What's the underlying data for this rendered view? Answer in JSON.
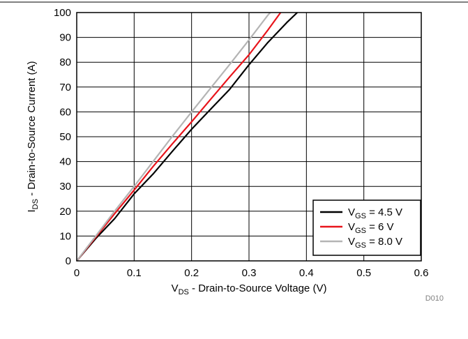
{
  "figure_code": "D010",
  "chart_data": {
    "type": "line",
    "title": "",
    "xlabel": {
      "main": "V",
      "sub": "DS",
      "rest": " - Drain-to-Source Voltage (V)"
    },
    "ylabel": {
      "main": "I",
      "sub": "DS",
      "rest": " - Drain-to-Source Current (A)"
    },
    "xlim": [
      0,
      0.6
    ],
    "ylim": [
      0,
      100
    ],
    "x_ticks": [
      0,
      0.1,
      0.2,
      0.3,
      0.4,
      0.5,
      0.6
    ],
    "x_tick_labels": [
      "0",
      "0.1",
      "0.2",
      "0.3",
      "0.4",
      "0.5",
      "0.6"
    ],
    "y_ticks": [
      0,
      10,
      20,
      30,
      40,
      50,
      60,
      70,
      80,
      90,
      100
    ],
    "y_tick_labels": [
      "0",
      "10",
      "20",
      "30",
      "40",
      "50",
      "60",
      "70",
      "80",
      "90",
      "100"
    ],
    "grid": true,
    "legend_position": "bottom-right",
    "series": [
      {
        "name": "VGS = 4.5 V",
        "legend": {
          "main": "V",
          "sub": "GS",
          "rest": " = 4.5 V"
        },
        "color": "#000000",
        "x": [
          0,
          0.033,
          0.066,
          0.1,
          0.133,
          0.166,
          0.2,
          0.233,
          0.266,
          0.3,
          0.333,
          0.366,
          0.384
        ],
        "y": [
          0,
          9,
          17,
          27,
          35,
          44,
          53,
          61,
          69,
          79,
          88,
          96,
          100
        ]
      },
      {
        "name": "VGS = 6 V",
        "legend": {
          "main": "V",
          "sub": "GS",
          "rest": " = 6 V"
        },
        "color": "#e8141b",
        "x": [
          0,
          0.033,
          0.066,
          0.1,
          0.133,
          0.166,
          0.2,
          0.233,
          0.266,
          0.3,
          0.333,
          0.355
        ],
        "y": [
          0,
          9.5,
          19,
          28.5,
          38,
          47,
          56,
          65,
          74,
          83,
          93,
          100
        ]
      },
      {
        "name": "VGS = 8.0 V",
        "legend": {
          "main": "V",
          "sub": "GS",
          "rest": " = 8.0 V"
        },
        "color": "#b4b4b4",
        "x": [
          0,
          0.033,
          0.066,
          0.1,
          0.133,
          0.166,
          0.2,
          0.233,
          0.266,
          0.3,
          0.333,
          0.337
        ],
        "y": [
          0,
          10,
          20,
          30,
          40,
          50,
          60,
          69.5,
          79,
          89,
          99,
          100
        ]
      }
    ]
  }
}
